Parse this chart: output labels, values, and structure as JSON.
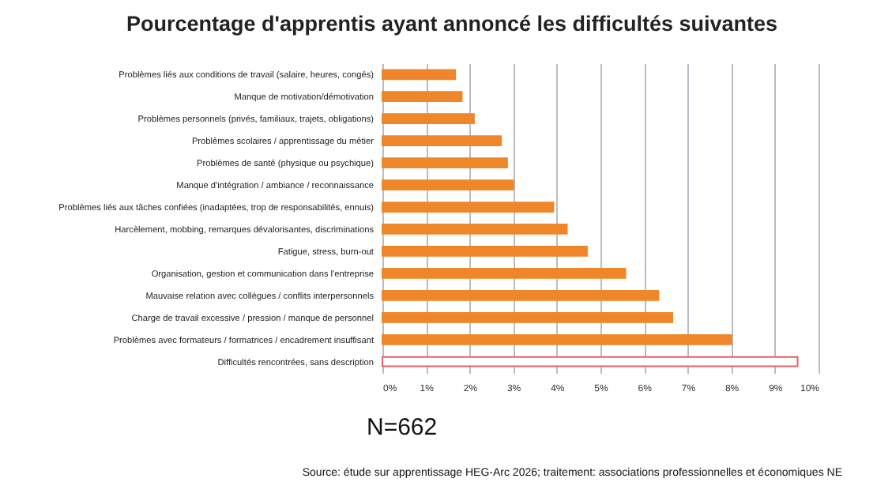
{
  "chart_data": {
    "type": "bar",
    "orientation": "horizontal",
    "title": "Pourcentage d'apprentis ayant annoncé les difficultés suivantes",
    "categories": [
      "Problèmes liés aux conditions de travail (salaire, heures, congés)",
      "Manque de motivation/démotivation",
      "Problèmes personnels (privés, familiaux, trajets, obligations)",
      "Problèmes scolaires / apprentissage du métier",
      "Problèmes de santé (physique ou psychique)",
      "Manque d'intégration / ambiance / reconnaissance",
      "Problèmes liés aux tâches confiées (inadaptées, trop de responsabilités, ennuis)",
      "Harcèlement, mobbing, remarques dévalorisantes, discriminations",
      "Fatigue, stress, burn-out",
      "Organisation, gestion et communication dans l'entreprise",
      "Mauvaise relation avec collègues / conflits interpersonnels",
      "Charge de travail excessive / pression / manque de personnel",
      "Problèmes avec formateurs / formatrices / encadrement insuffisant",
      "Difficultés rencontrées, sans description"
    ],
    "values": [
      1.67,
      1.82,
      2.1,
      2.72,
      2.86,
      3.0,
      3.92,
      4.23,
      4.69,
      5.57,
      6.33,
      6.65,
      8.0,
      9.52
    ],
    "colors": [
      "#f0862a",
      "#f0862a",
      "#f0862a",
      "#f0862a",
      "#f0862a",
      "#f0862a",
      "#f0862a",
      "#f0862a",
      "#f0862a",
      "#f0862a",
      "#f0862a",
      "#f0862a",
      "#f0862a",
      "#ffffff"
    ],
    "xlim": [
      0,
      10
    ],
    "xticks": [
      {
        "value": 0,
        "label": "0%"
      },
      {
        "value": 1,
        "label": "1%"
      },
      {
        "value": 2,
        "label": "2%"
      },
      {
        "value": 3,
        "label": "3%"
      },
      {
        "value": 4,
        "label": "4%"
      },
      {
        "value": 5,
        "label": "5%"
      },
      {
        "value": 6,
        "label": "6%"
      },
      {
        "value": 7,
        "label": "7%"
      },
      {
        "value": 8,
        "label": "8%"
      },
      {
        "value": 9,
        "label": "9%"
      },
      {
        "value": 10,
        "label": "10%"
      }
    ],
    "grid": "x",
    "annotations": [
      "N=662",
      "Source: étude sur apprentissage HEG-Arc 2026; traitement: associations professionnelles et économiques NE"
    ]
  }
}
